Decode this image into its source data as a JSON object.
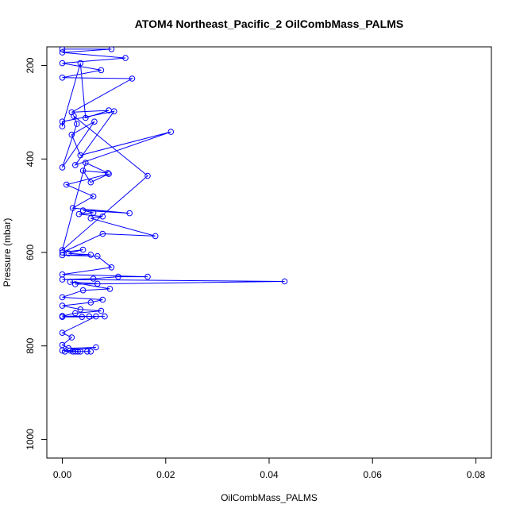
{
  "chart_data": {
    "type": "line",
    "title": "ATOM4 Northeast_Pacific_2 OilCombMass_PALMS",
    "xlabel": "OilCombMass_PALMS",
    "ylabel": "Pressure (mbar)",
    "xlim": [
      -0.003,
      0.083
    ],
    "ylim": [
      1040,
      160
    ],
    "y_reversed": true,
    "grid": false,
    "legend": "none",
    "x_ticks": [
      0.0,
      0.02,
      0.04,
      0.06,
      0.08
    ],
    "x_tick_labels": [
      "0.00",
      "0.02",
      "0.04",
      "0.06",
      "0.08"
    ],
    "y_ticks": [
      200,
      400,
      600,
      800,
      1000
    ],
    "y_tick_labels": [
      "200",
      "400",
      "600",
      "800",
      "1000"
    ],
    "color": "#0000ff",
    "marker": "open-circle",
    "series": [
      {
        "x": [
          0.0,
          0.0095,
          0.0,
          0.0122,
          0.0,
          0.0075,
          0.0,
          0.0135,
          0.0018,
          0.009,
          0.0045,
          0.0035,
          0.0,
          0.0,
          0.01,
          0.0025,
          0.021,
          0.0035,
          0.0018,
          0.0062,
          0.0,
          0.0028,
          0.0022,
          0.0165,
          0.0,
          0.0045,
          0.0088,
          0.004,
          0.0055,
          0.009,
          0.0008,
          0.006,
          0.002,
          0.013,
          0.004,
          0.006,
          0.0032,
          0.0078,
          0.0055,
          0.018,
          0.0078,
          0.0,
          0.004,
          0.0012,
          0.0055,
          0.0,
          0.0068,
          0.0095,
          0.0,
          0.0165,
          0.0108,
          0.006,
          0.0,
          0.043,
          0.0025,
          0.0068,
          0.0015,
          0.0092,
          0.004,
          0.0,
          0.0078,
          0.0055,
          0.0,
          0.0035,
          0.0075,
          0.0025,
          0.0,
          0.0082,
          0.0052,
          0.0038,
          0.0,
          0.0065,
          0.0,
          0.0018,
          0.0,
          0.0012,
          0.0065,
          0.0015,
          0.0,
          0.0035,
          0.0005,
          0.002,
          0.0025,
          0.0048,
          0.003,
          0.0055
        ],
        "y": [
          165,
          165,
          172,
          184,
          195,
          210,
          226,
          228,
          300,
          296,
          312,
          195,
          330,
          320,
          298,
          413,
          342,
          392,
          348,
          320,
          418,
          325,
          308,
          436,
          595,
          408,
          430,
          425,
          450,
          432,
          455,
          480,
          505,
          516,
          510,
          515,
          518,
          523,
          527,
          565,
          560,
          600,
          594,
          602,
          605,
          606,
          608,
          632,
          647,
          652,
          652,
          656,
          658,
          662,
          668,
          667,
          663,
          678,
          681,
          696,
          701,
          707,
          714,
          722,
          725,
          730,
          736,
          737,
          737,
          738,
          738,
          737,
          772,
          782,
          798,
          805,
          803,
          810,
          810,
          812,
          812,
          812,
          812,
          812,
          812,
          812
        ]
      }
    ]
  }
}
